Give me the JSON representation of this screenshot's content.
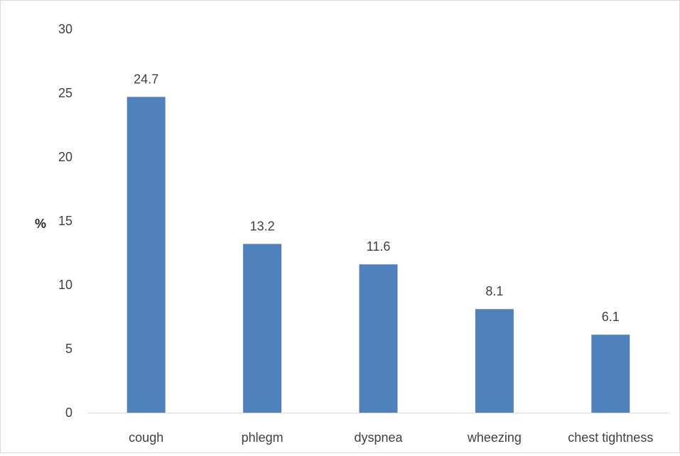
{
  "chart_data": {
    "type": "bar",
    "title": "",
    "xlabel": "",
    "ylabel": "%",
    "ylim": [
      0,
      30
    ],
    "yticks": [
      0,
      5,
      10,
      15,
      20,
      25,
      30
    ],
    "categories": [
      "cough",
      "phlegm",
      "dyspnea",
      "wheezing",
      "chest tightness"
    ],
    "values": [
      24.7,
      13.2,
      11.6,
      8.1,
      6.1
    ],
    "data_labels": [
      "24.7",
      "13.2",
      "11.6",
      "8.1",
      "6.1"
    ],
    "bar_color": "#4F81BD",
    "axis_color": "#d9d9d9",
    "grid": false,
    "legend": "none"
  }
}
